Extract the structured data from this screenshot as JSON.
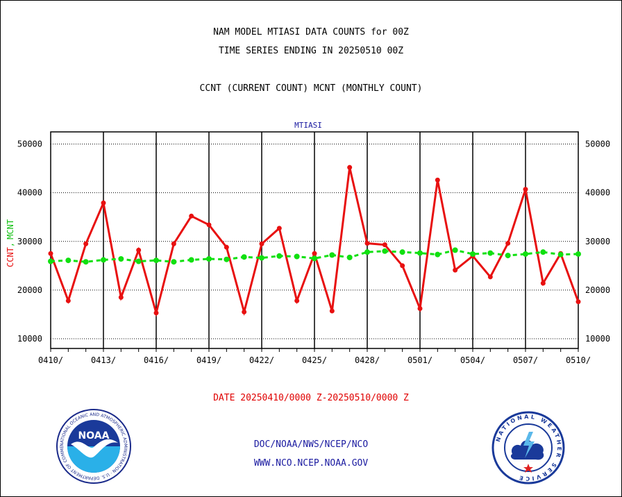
{
  "header": {
    "title_line1": "NAM MODEL MTIASI DATA COUNTS for 00Z",
    "title_line2": "TIME SERIES ENDING IN 20250510 00Z",
    "subtitle": "CCNT (CURRENT COUNT) MCNT (MONTHLY COUNT)"
  },
  "chart_data": {
    "type": "line",
    "title": "MTIASI",
    "ylabel_ccnt": "CCNT",
    "ylabel_sep": ",",
    "ylabel_mcnt": "MCNT",
    "ylim": [
      8000,
      52500
    ],
    "yticks": [
      10000,
      20000,
      30000,
      40000,
      50000
    ],
    "xtick_labels": [
      "0410/",
      "0413/",
      "0416/",
      "0419/",
      "0422/",
      "0425/",
      "0428/",
      "0501/",
      "0504/",
      "0507/",
      "0510/"
    ],
    "xlabel": "DATE 20250410/0000 Z-20250510/0000 Z",
    "grid": true,
    "colors": {
      "CCNT": "#e81010",
      "MCNT": "#10e010"
    },
    "series": [
      {
        "name": "CCNT",
        "values": [
          27500,
          17800,
          29500,
          37900,
          18500,
          28200,
          15300,
          29500,
          35200,
          33400,
          28800,
          15500,
          29500,
          32700,
          17800,
          27500,
          15700,
          45200,
          29600,
          29300,
          25000,
          16200,
          42600,
          24100,
          27000,
          22700,
          29600,
          40700,
          21400,
          27500,
          17600
        ]
      },
      {
        "name": "MCNT",
        "values": [
          25900,
          26100,
          25800,
          26200,
          26400,
          25900,
          26100,
          25800,
          26200,
          26400,
          26300,
          26800,
          26600,
          27000,
          26900,
          26500,
          27200,
          26700,
          27800,
          28000,
          27800,
          27600,
          27300,
          28200,
          27400,
          27600,
          27100,
          27400,
          27800,
          27300,
          27400
        ]
      }
    ]
  },
  "footer": {
    "line1": "DOC/NOAA/NWS/NCEP/NCO",
    "line2": "WWW.NCO.NCEP.NOAA.GOV",
    "noaa_logo_text": "NOAA",
    "noaa_ring_text": "NATIONAL OCEANIC AND ATMOSPHERIC ADMINISTRATION · U.S. DEPARTMENT OF COMMERCE",
    "nws_ring_text": "NATIONAL WEATHER SERVICE"
  }
}
